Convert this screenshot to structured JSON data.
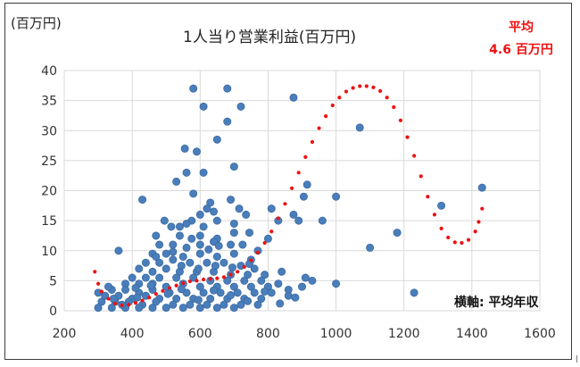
{
  "colors": {
    "points": "#4a7ebb",
    "points_edge": "#3a6aa3",
    "trend": "#ee1111",
    "grid": "#d9d9d9",
    "avg_text": "#ee1111"
  },
  "chart_data": {
    "type": "scatter",
    "title": "1人当り営業利益(百万円)",
    "ylabel": "(百万円)",
    "xlabel": "横軸: 平均年収",
    "average_note": {
      "line1": "平均",
      "line2": "4.6 百万円"
    },
    "xlim": [
      200,
      1600
    ],
    "ylim": [
      0,
      40
    ],
    "xticks": [
      "200",
      "400",
      "600",
      "800",
      "1000",
      "1200",
      "1400",
      "1600"
    ],
    "yticks": [
      "0",
      "5",
      "10",
      "15",
      "20",
      "25",
      "30",
      "35",
      "40"
    ],
    "grid": true,
    "series": [
      {
        "kind": "points",
        "points": [
          [
            580,
            37
          ],
          [
            680,
            37
          ],
          [
            875,
            35.5
          ],
          [
            610,
            34
          ],
          [
            720,
            34
          ],
          [
            680,
            31.5
          ],
          [
            1070,
            30.5
          ],
          [
            650,
            28.5
          ],
          [
            555,
            27
          ],
          [
            590,
            26.5
          ],
          [
            700,
            24
          ],
          [
            560,
            23
          ],
          [
            610,
            23
          ],
          [
            530,
            21.5
          ],
          [
            1000,
            19
          ],
          [
            915,
            21
          ],
          [
            580,
            19.5
          ],
          [
            430,
            18.5
          ],
          [
            630,
            18
          ],
          [
            690,
            18.5
          ],
          [
            810,
            17
          ],
          [
            1180,
            13
          ],
          [
            1100,
            10.5
          ],
          [
            1230,
            3
          ],
          [
            1310,
            17.5
          ],
          [
            1430,
            20.5
          ],
          [
            360,
            10
          ],
          [
            620,
            17
          ],
          [
            600,
            16
          ],
          [
            640,
            16.5
          ],
          [
            715,
            17
          ],
          [
            735,
            16
          ],
          [
            575,
            15
          ],
          [
            495,
            15
          ],
          [
            540,
            14
          ],
          [
            650,
            15
          ],
          [
            610,
            14
          ],
          [
            560,
            14.5
          ],
          [
            515,
            14
          ],
          [
            700,
            14.5
          ],
          [
            470,
            12.5
          ],
          [
            540,
            12.5
          ],
          [
            600,
            12.5
          ],
          [
            650,
            12
          ],
          [
            700,
            13
          ],
          [
            745,
            13
          ],
          [
            800,
            12
          ],
          [
            830,
            15
          ],
          [
            875,
            16
          ],
          [
            890,
            15
          ],
          [
            905,
            19
          ],
          [
            960,
            15
          ],
          [
            480,
            11
          ],
          [
            520,
            11
          ],
          [
            560,
            10.5
          ],
          [
            600,
            11
          ],
          [
            640,
            11.5
          ],
          [
            690,
            11
          ],
          [
            725,
            11
          ],
          [
            770,
            10
          ],
          [
            460,
            9.5
          ],
          [
            500,
            9.5
          ],
          [
            550,
            9
          ],
          [
            600,
            9.5
          ],
          [
            650,
            9
          ],
          [
            700,
            9.5
          ],
          [
            750,
            8.5
          ],
          [
            440,
            8
          ],
          [
            480,
            8
          ],
          [
            520,
            8.5
          ],
          [
            570,
            8
          ],
          [
            620,
            8
          ],
          [
            670,
            8
          ],
          [
            720,
            7.5
          ],
          [
            760,
            7
          ],
          [
            420,
            7
          ],
          [
            460,
            6.5
          ],
          [
            500,
            7
          ],
          [
            540,
            6.5
          ],
          [
            590,
            6.5
          ],
          [
            640,
            6.5
          ],
          [
            690,
            6
          ],
          [
            740,
            6
          ],
          [
            790,
            6
          ],
          [
            840,
            6.5
          ],
          [
            400,
            5.5
          ],
          [
            440,
            5.5
          ],
          [
            480,
            5.5
          ],
          [
            530,
            5.5
          ],
          [
            580,
            5.5
          ],
          [
            630,
            5
          ],
          [
            680,
            5
          ],
          [
            730,
            5
          ],
          [
            780,
            5
          ],
          [
            830,
            4.5
          ],
          [
            910,
            5.5
          ],
          [
            930,
            5
          ],
          [
            1000,
            4.5
          ],
          [
            380,
            4.5
          ],
          [
            420,
            4.5
          ],
          [
            460,
            4.5
          ],
          [
            500,
            4
          ],
          [
            550,
            4.5
          ],
          [
            600,
            4
          ],
          [
            650,
            4
          ],
          [
            700,
            4
          ],
          [
            750,
            4
          ],
          [
            800,
            4
          ],
          [
            860,
            3.5
          ],
          [
            900,
            4
          ],
          [
            340,
            3.5
          ],
          [
            380,
            3.5
          ],
          [
            420,
            3
          ],
          [
            460,
            3.5
          ],
          [
            510,
            3
          ],
          [
            560,
            3
          ],
          [
            610,
            3
          ],
          [
            660,
            3
          ],
          [
            710,
            3
          ],
          [
            760,
            3
          ],
          [
            810,
            3
          ],
          [
            860,
            2.5
          ],
          [
            320,
            2.5
          ],
          [
            360,
            2.5
          ],
          [
            400,
            2
          ],
          [
            440,
            2.5
          ],
          [
            480,
            2
          ],
          [
            530,
            2
          ],
          [
            580,
            2
          ],
          [
            630,
            2
          ],
          [
            680,
            2
          ],
          [
            730,
            2
          ],
          [
            780,
            2
          ],
          [
            310,
            1.5
          ],
          [
            350,
            1.5
          ],
          [
            390,
            1.5
          ],
          [
            430,
            1
          ],
          [
            470,
            1.5
          ],
          [
            520,
            1
          ],
          [
            570,
            1
          ],
          [
            620,
            1
          ],
          [
            670,
            1
          ],
          [
            720,
            1
          ],
          [
            770,
            1
          ],
          [
            300,
            0.5
          ],
          [
            340,
            0.5
          ],
          [
            380,
            0.5
          ],
          [
            420,
            0.5
          ],
          [
            460,
            0.5
          ],
          [
            500,
            0.5
          ],
          [
            550,
            0.5
          ],
          [
            600,
            0.5
          ],
          [
            650,
            0.5
          ],
          [
            700,
            0.5
          ],
          [
            330,
            4
          ],
          [
            300,
            3
          ],
          [
            345,
            2
          ],
          [
            410,
            3.8
          ],
          [
            455,
            4.2
          ],
          [
            505,
            2.8
          ],
          [
            545,
            3.6
          ],
          [
            595,
            1.8
          ],
          [
            640,
            3.4
          ],
          [
            690,
            2.6
          ],
          [
            740,
            1.6
          ],
          [
            790,
            3.2
          ],
          [
            835,
            1.2
          ],
          [
            880,
            2.2
          ],
          [
            370,
            1
          ],
          [
            415,
            2.2
          ],
          [
            545,
            7.5
          ],
          [
            595,
            7
          ],
          [
            645,
            7.5
          ],
          [
            695,
            7.2
          ],
          [
            745,
            7.8
          ],
          [
            520,
            9.8
          ],
          [
            625,
            10.2
          ],
          [
            575,
            12
          ],
          [
            470,
            9
          ],
          [
            655,
            10.8
          ]
        ]
      },
      {
        "kind": "trend",
        "points": [
          [
            290,
            6.5
          ],
          [
            300,
            4.5
          ],
          [
            310,
            3.2
          ],
          [
            330,
            2
          ],
          [
            350,
            1.2
          ],
          [
            370,
            0.9
          ],
          [
            390,
            1
          ],
          [
            410,
            1.3
          ],
          [
            430,
            1.7
          ],
          [
            450,
            2.2
          ],
          [
            470,
            2.8
          ],
          [
            490,
            3.3
          ],
          [
            510,
            3.8
          ],
          [
            530,
            4.2
          ],
          [
            550,
            4.6
          ],
          [
            570,
            4.9
          ],
          [
            590,
            5
          ],
          [
            610,
            5.2
          ],
          [
            630,
            5.3
          ],
          [
            650,
            5.4
          ],
          [
            670,
            5.6
          ],
          [
            690,
            6
          ],
          [
            710,
            6.5
          ],
          [
            730,
            7.3
          ],
          [
            750,
            8.4
          ],
          [
            770,
            9.7
          ],
          [
            790,
            11.3
          ],
          [
            810,
            13.2
          ],
          [
            830,
            15.4
          ],
          [
            850,
            17.8
          ],
          [
            870,
            20.4
          ],
          [
            890,
            23
          ],
          [
            910,
            25.6
          ],
          [
            930,
            28.1
          ],
          [
            950,
            30.4
          ],
          [
            970,
            32.4
          ],
          [
            990,
            34.2
          ],
          [
            1010,
            35.5
          ],
          [
            1030,
            36.5
          ],
          [
            1050,
            37.1
          ],
          [
            1070,
            37.4
          ],
          [
            1090,
            37.4
          ],
          [
            1110,
            37.2
          ],
          [
            1130,
            36.6
          ],
          [
            1150,
            35.5
          ],
          [
            1170,
            33.9
          ],
          [
            1190,
            31.7
          ],
          [
            1210,
            28.9
          ],
          [
            1230,
            25.8
          ],
          [
            1250,
            22.4
          ],
          [
            1270,
            19
          ],
          [
            1290,
            16
          ],
          [
            1310,
            13.7
          ],
          [
            1330,
            12.2
          ],
          [
            1350,
            11.4
          ],
          [
            1370,
            11.3
          ],
          [
            1390,
            11.8
          ],
          [
            1410,
            13.2
          ],
          [
            1420,
            14.8
          ],
          [
            1430,
            17
          ]
        ]
      }
    ]
  }
}
